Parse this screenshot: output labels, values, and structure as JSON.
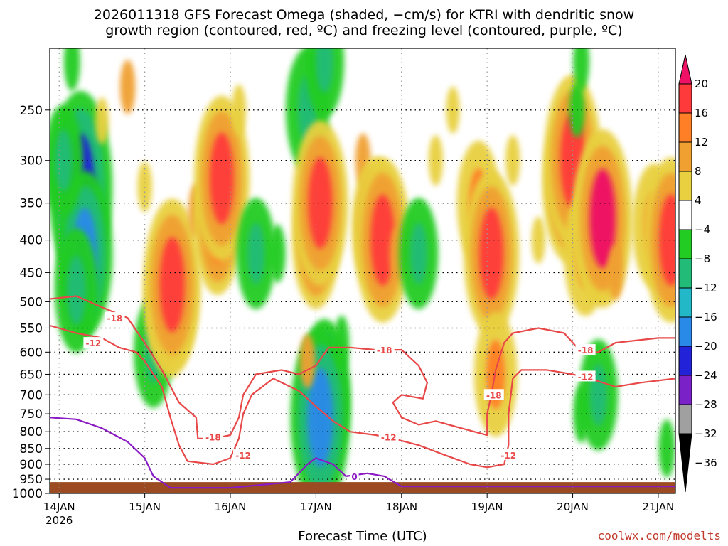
{
  "chart_data": {
    "type": "heatmap",
    "title_line1": "2026011318 GFS Forecast Omega (shaded, −cm/s) for KTRI with dendritic snow",
    "title_line2": "growth region (contoured, red, ºC) and freezing level (contoured, purple, ºC)",
    "xlabel": "Forecast Time (UTC)",
    "credit": "coolwx.com/modelts",
    "y_axis": {
      "ticks": [
        250,
        300,
        350,
        400,
        450,
        500,
        550,
        600,
        650,
        700,
        750,
        800,
        850,
        900,
        950,
        1000
      ],
      "ylim": [
        1000,
        200
      ],
      "scale": "log-pressure"
    },
    "x_axis": {
      "ticks": [
        "14JAN",
        "15JAN",
        "16JAN",
        "17JAN",
        "18JAN",
        "19JAN",
        "20JAN",
        "21JAN"
      ],
      "year_label": "2026",
      "xlim": [
        -0.11,
        7.2
      ]
    },
    "colorbar": {
      "labels": [
        "20",
        "16",
        "12",
        "8",
        "4",
        "−4",
        "−8",
        "−12",
        "−16",
        "−20",
        "−24",
        "−28",
        "−32",
        "−36"
      ],
      "colors": [
        "#ee1166",
        "#ff3a3a",
        "#ff7f27",
        "#f0a030",
        "#e8d040",
        "#ffffff",
        "#22cc22",
        "#22bb77",
        "#22b8c8",
        "#2a8ae8",
        "#2222d8",
        "#7a22c8",
        "#a0a0a0",
        "#000000"
      ]
    },
    "omega_cells": [
      {
        "t": 0.25,
        "p": 330,
        "v": -20
      },
      {
        "t": 0.3,
        "p": 420,
        "v": -16
      },
      {
        "t": 0.05,
        "p": 300,
        "v": -8
      },
      {
        "t": 0.2,
        "p": 480,
        "v": -10
      },
      {
        "t": 0.5,
        "p": 260,
        "v": 4
      },
      {
        "t": 0.8,
        "p": 230,
        "v": 6
      },
      {
        "t": 1.0,
        "p": 330,
        "v": 5
      },
      {
        "t": 1.1,
        "p": 600,
        "v": -8
      },
      {
        "t": 1.3,
        "p": 500,
        "v": 14
      },
      {
        "t": 1.32,
        "p": 470,
        "v": 17
      },
      {
        "t": 1.6,
        "p": 360,
        "v": 6
      },
      {
        "t": 1.85,
        "p": 380,
        "v": 12
      },
      {
        "t": 1.9,
        "p": 320,
        "v": 16
      },
      {
        "t": 2.1,
        "p": 250,
        "v": 5
      },
      {
        "t": 2.3,
        "p": 420,
        "v": -8
      },
      {
        "t": 2.55,
        "p": 420,
        "v": -7
      },
      {
        "t": 2.9,
        "p": 250,
        "v": -10
      },
      {
        "t": 3.0,
        "p": 400,
        "v": 12
      },
      {
        "t": 3.05,
        "p": 350,
        "v": 16
      },
      {
        "t": 3.1,
        "p": 700,
        "v": -14
      },
      {
        "t": 3.05,
        "p": 760,
        "v": -18
      },
      {
        "t": 3.3,
        "p": 580,
        "v": -6
      },
      {
        "t": 3.55,
        "p": 300,
        "v": 6
      },
      {
        "t": 3.7,
        "p": 380,
        "v": 12
      },
      {
        "t": 3.78,
        "p": 400,
        "v": 16
      },
      {
        "t": 3.95,
        "p": 420,
        "v": 6
      },
      {
        "t": 4.2,
        "p": 420,
        "v": -8
      },
      {
        "t": 4.4,
        "p": 300,
        "v": 5
      },
      {
        "t": 4.6,
        "p": 250,
        "v": 4
      },
      {
        "t": 4.9,
        "p": 350,
        "v": 10
      },
      {
        "t": 5.05,
        "p": 420,
        "v": 16
      },
      {
        "t": 5.1,
        "p": 650,
        "v": 10
      },
      {
        "t": 5.3,
        "p": 300,
        "v": 5
      },
      {
        "t": 5.6,
        "p": 400,
        "v": 4
      },
      {
        "t": 5.95,
        "p": 330,
        "v": 14
      },
      {
        "t": 6.0,
        "p": 300,
        "v": 17
      },
      {
        "t": 6.15,
        "p": 420,
        "v": 10
      },
      {
        "t": 6.3,
        "p": 380,
        "v": 14
      },
      {
        "t": 6.35,
        "p": 370,
        "v": 18
      },
      {
        "t": 6.5,
        "p": 450,
        "v": 6
      },
      {
        "t": 6.05,
        "p": 250,
        "v": -6
      },
      {
        "t": 6.1,
        "p": 750,
        "v": -7
      },
      {
        "t": 6.3,
        "p": 700,
        "v": -8
      },
      {
        "t": 6.95,
        "p": 380,
        "v": 10
      },
      {
        "t": 7.15,
        "p": 400,
        "v": 16
      },
      {
        "t": 7.1,
        "p": 850,
        "v": -7
      },
      {
        "t": 3.1,
        "p": 210,
        "v": -8
      },
      {
        "t": 0.15,
        "p": 210,
        "v": -7
      },
      {
        "t": 6.1,
        "p": 210,
        "v": -7
      },
      {
        "t": 2.9,
        "p": 620,
        "v": 6
      }
    ],
    "contours": [
      {
        "label": "-18",
        "color": "#e84848",
        "points": [
          [
            -0.11,
            495
          ],
          [
            0.2,
            490
          ],
          [
            0.5,
            510
          ],
          [
            0.8,
            530
          ],
          [
            1.0,
            580
          ],
          [
            1.2,
            640
          ],
          [
            1.4,
            720
          ],
          [
            1.6,
            760
          ],
          [
            1.62,
            820
          ],
          [
            1.8,
            820
          ],
          [
            2.0,
            810
          ],
          [
            2.1,
            760
          ],
          [
            2.15,
            700
          ],
          [
            2.3,
            650
          ],
          [
            2.6,
            640
          ],
          [
            2.8,
            650
          ],
          [
            3.0,
            630
          ],
          [
            3.15,
            590
          ],
          [
            3.4,
            590
          ],
          [
            3.7,
            595
          ],
          [
            4.0,
            595
          ],
          [
            4.2,
            630
          ],
          [
            4.3,
            670
          ],
          [
            4.25,
            710
          ],
          [
            4.0,
            700
          ],
          [
            3.9,
            720
          ],
          [
            4.0,
            760
          ],
          [
            4.2,
            780
          ],
          [
            4.4,
            770
          ],
          [
            4.7,
            790
          ],
          [
            5.0,
            810
          ],
          [
            5.0,
            750
          ],
          [
            5.05,
            700
          ],
          [
            5.1,
            640
          ],
          [
            5.2,
            580
          ],
          [
            5.3,
            560
          ],
          [
            5.6,
            550
          ],
          [
            5.9,
            560
          ],
          [
            6.1,
            600
          ],
          [
            6.3,
            600
          ],
          [
            6.5,
            580
          ],
          [
            7.0,
            570
          ],
          [
            7.2,
            570
          ]
        ]
      },
      {
        "label": "-12",
        "color": "#e84848",
        "points": [
          [
            -0.11,
            545
          ],
          [
            0.2,
            560
          ],
          [
            0.5,
            570
          ],
          [
            0.7,
            590
          ],
          [
            0.9,
            600
          ],
          [
            1.0,
            620
          ],
          [
            1.2,
            680
          ],
          [
            1.3,
            760
          ],
          [
            1.4,
            840
          ],
          [
            1.5,
            890
          ],
          [
            1.8,
            900
          ],
          [
            2.0,
            880
          ],
          [
            2.1,
            820
          ],
          [
            2.15,
            750
          ],
          [
            2.25,
            700
          ],
          [
            2.5,
            660
          ],
          [
            2.8,
            690
          ],
          [
            3.0,
            730
          ],
          [
            3.2,
            770
          ],
          [
            3.4,
            800
          ],
          [
            3.7,
            810
          ],
          [
            3.9,
            820
          ],
          [
            4.2,
            840
          ],
          [
            4.5,
            870
          ],
          [
            4.8,
            900
          ],
          [
            5.0,
            910
          ],
          [
            5.2,
            900
          ],
          [
            5.25,
            840
          ],
          [
            5.25,
            750
          ],
          [
            5.3,
            660
          ],
          [
            5.4,
            640
          ],
          [
            5.7,
            640
          ],
          [
            6.0,
            650
          ],
          [
            6.2,
            660
          ],
          [
            6.5,
            680
          ],
          [
            6.8,
            670
          ],
          [
            7.2,
            660
          ]
        ]
      },
      {
        "label": "0",
        "color": "#8a1ac4",
        "points": [
          [
            -0.11,
            760
          ],
          [
            0.2,
            765
          ],
          [
            0.5,
            790
          ],
          [
            0.8,
            830
          ],
          [
            1.0,
            880
          ],
          [
            1.1,
            940
          ],
          [
            1.3,
            980
          ],
          [
            2.0,
            980
          ],
          [
            2.7,
            960
          ],
          [
            2.9,
            900
          ],
          [
            3.0,
            880
          ],
          [
            3.2,
            900
          ],
          [
            3.35,
            940
          ],
          [
            3.6,
            930
          ],
          [
            3.8,
            940
          ],
          [
            4.0,
            975
          ],
          [
            7.2,
            975
          ]
        ]
      }
    ],
    "contour_labels": [
      {
        "text": "-18",
        "t": 0.65,
        "p": 530,
        "color": "#e84848"
      },
      {
        "text": "-12",
        "t": 0.4,
        "p": 580,
        "color": "#e84848"
      },
      {
        "text": "-18",
        "t": 1.8,
        "p": 815,
        "color": "#e84848"
      },
      {
        "text": "-12",
        "t": 2.15,
        "p": 870,
        "color": "#e84848"
      },
      {
        "text": "-18",
        "t": 3.8,
        "p": 595,
        "color": "#e84848"
      },
      {
        "text": "-12",
        "t": 3.85,
        "p": 815,
        "color": "#e84848"
      },
      {
        "text": "-18",
        "t": 5.08,
        "p": 700,
        "color": "#e84848"
      },
      {
        "text": "-12",
        "t": 5.25,
        "p": 870,
        "color": "#e84848"
      },
      {
        "text": "-18",
        "t": 6.15,
        "p": 595,
        "color": "#e84848"
      },
      {
        "text": "-12",
        "t": 6.15,
        "p": 655,
        "color": "#e84848"
      },
      {
        "text": "0",
        "t": 3.45,
        "p": 940,
        "color": "#8a1ac4"
      }
    ],
    "terrain_pressure": 960,
    "terrain_color": "#9b4a22",
    "grid": true
  }
}
